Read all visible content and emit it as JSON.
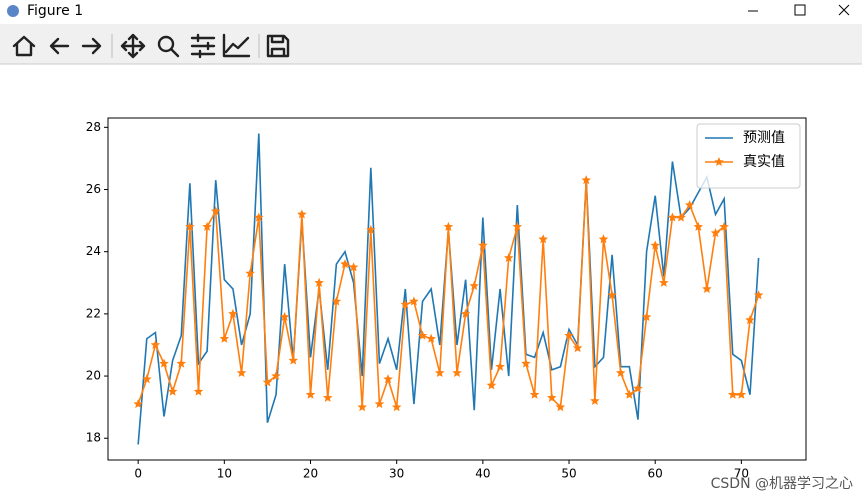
{
  "window": {
    "title": "Figure 1"
  },
  "watermark": "CSDN @机器学习之心",
  "chart_data": {
    "type": "line",
    "x": [
      0,
      1,
      2,
      3,
      4,
      5,
      6,
      7,
      8,
      9,
      10,
      11,
      12,
      13,
      14,
      15,
      16,
      17,
      18,
      19,
      20,
      21,
      22,
      23,
      24,
      25,
      26,
      27,
      28,
      29,
      30,
      31,
      32,
      33,
      34,
      35,
      36,
      37,
      38,
      39,
      40,
      41,
      42,
      43,
      44,
      45,
      46,
      47,
      48,
      49,
      50,
      51,
      52,
      53,
      54,
      55,
      56,
      57,
      58,
      59,
      60,
      61,
      62,
      63,
      64,
      65,
      66,
      67,
      68,
      69,
      70,
      71,
      72
    ],
    "series": [
      {
        "name": "预测值",
        "color": "#1f77b4",
        "marker": "none",
        "values": [
          17.8,
          21.2,
          21.4,
          18.7,
          20.5,
          21.3,
          26.2,
          20.4,
          20.8,
          26.3,
          23.1,
          22.8,
          21.0,
          22.0,
          27.8,
          18.5,
          19.4,
          23.6,
          20.5,
          25.0,
          20.6,
          22.8,
          20.2,
          23.6,
          24.0,
          23.0,
          20.0,
          26.7,
          20.4,
          21.2,
          20.2,
          22.8,
          19.1,
          22.4,
          22.8,
          21.0,
          24.7,
          21.0,
          23.1,
          18.9,
          25.1,
          20.2,
          22.8,
          20.0,
          25.5,
          20.7,
          20.6,
          21.4,
          20.2,
          20.3,
          21.5,
          21.0,
          26.3,
          20.3,
          20.6,
          23.9,
          20.3,
          20.3,
          18.6,
          24.0,
          25.8,
          23.2,
          26.9,
          25.1,
          25.4,
          25.9,
          26.4,
          25.2,
          25.7,
          20.7,
          20.5,
          19.4,
          23.8
        ]
      },
      {
        "name": "真实值",
        "color": "#ff7f0e",
        "marker": "star",
        "values": [
          19.1,
          19.9,
          21.0,
          20.4,
          19.5,
          20.4,
          24.8,
          19.5,
          24.8,
          25.3,
          21.2,
          22.0,
          20.1,
          23.3,
          25.1,
          19.8,
          20.0,
          21.9,
          20.5,
          25.2,
          19.4,
          23.0,
          19.3,
          22.4,
          23.6,
          23.5,
          19.0,
          24.7,
          19.1,
          19.9,
          19.0,
          22.3,
          22.4,
          21.3,
          21.2,
          20.1,
          24.8,
          20.1,
          22.0,
          22.9,
          24.2,
          19.7,
          20.3,
          23.8,
          24.8,
          20.4,
          19.4,
          24.4,
          19.3,
          19.0,
          21.3,
          20.9,
          26.3,
          19.2,
          24.4,
          22.6,
          20.1,
          19.4,
          19.6,
          21.9,
          24.2,
          23.0,
          25.1,
          25.1,
          25.5,
          24.8,
          22.8,
          24.6,
          24.8,
          19.4,
          19.4,
          21.8,
          22.6
        ]
      }
    ],
    "xlim": [
      -3.5,
      77.5
    ],
    "ylim": [
      17.3,
      28.3
    ],
    "xticks": [
      0,
      10,
      20,
      30,
      40,
      50,
      60,
      70
    ],
    "yticks": [
      18,
      20,
      22,
      24,
      26,
      28
    ],
    "legend": "upper right",
    "grid": false
  }
}
